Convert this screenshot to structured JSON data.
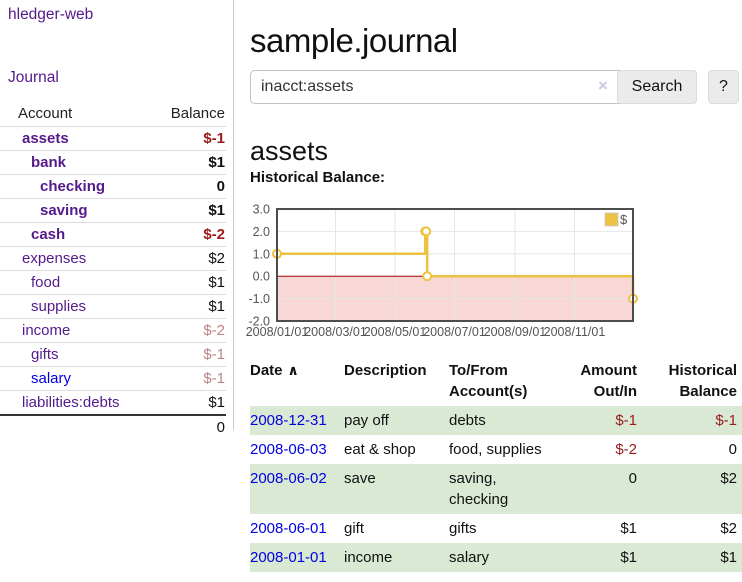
{
  "sidebar": {
    "brand": "hledger-web",
    "journal_link": "Journal",
    "accounts": {
      "header_account": "Account",
      "header_balance": "Balance",
      "rows": [
        {
          "name": "assets",
          "balance": "$-1",
          "indent": 1,
          "bold": true,
          "balance_style": "neg-strong",
          "link_style": "purple"
        },
        {
          "name": "bank",
          "balance": "$1",
          "indent": 2,
          "bold": true,
          "balance_style": "normal",
          "link_style": "purple"
        },
        {
          "name": "checking",
          "balance": "0",
          "indent": 3,
          "bold": true,
          "balance_style": "normal",
          "link_style": "purple"
        },
        {
          "name": "saving",
          "balance": "$1",
          "indent": 3,
          "bold": true,
          "balance_style": "normal",
          "link_style": "purple"
        },
        {
          "name": "cash",
          "balance": "$-2",
          "indent": 2,
          "bold": true,
          "balance_style": "neg-strong",
          "link_style": "purple"
        },
        {
          "name": "expenses",
          "balance": "$2",
          "indent": 1,
          "bold": false,
          "balance_style": "normal",
          "link_style": "purple"
        },
        {
          "name": "food",
          "balance": "$1",
          "indent": 2,
          "bold": false,
          "balance_style": "normal",
          "link_style": "purple"
        },
        {
          "name": "supplies",
          "balance": "$1",
          "indent": 2,
          "bold": false,
          "balance_style": "normal",
          "link_style": "purple"
        },
        {
          "name": "income",
          "balance": "$-2",
          "indent": 1,
          "bold": false,
          "balance_style": "neg-dim",
          "link_style": "purple"
        },
        {
          "name": "gifts",
          "balance": "$-1",
          "indent": 2,
          "bold": false,
          "balance_style": "neg-dim",
          "link_style": "purple"
        },
        {
          "name": "salary",
          "balance": "$-1",
          "indent": 2,
          "bold": false,
          "balance_style": "neg-dim",
          "link_style": "blue"
        },
        {
          "name": "liabilities:debts",
          "balance": "$1",
          "indent": 1,
          "bold": false,
          "balance_style": "normal",
          "link_style": "purple"
        }
      ],
      "total": "0"
    }
  },
  "main": {
    "title": "sample.journal",
    "search": {
      "value": "inacct:assets",
      "clear_icon": "×",
      "search_button": "Search",
      "help_button": "?"
    },
    "account_heading": "assets",
    "chart_heading": "Historical Balance:"
  },
  "chart_data": {
    "type": "line",
    "title": "Historical Balance",
    "step": true,
    "series": [
      {
        "name": "$",
        "color": "#edc240",
        "points": [
          {
            "date": "2008-01-01",
            "value": 1
          },
          {
            "date": "2008-06-01",
            "value": 2
          },
          {
            "date": "2008-06-02",
            "value": 2
          },
          {
            "date": "2008-06-03",
            "value": 0
          },
          {
            "date": "2008-12-31",
            "value": -1
          }
        ]
      }
    ],
    "x_range": [
      "2008-01-01",
      "2008-12-31"
    ],
    "ylim": [
      -2,
      3
    ],
    "y_ticks": [
      3.0,
      2.0,
      1.0,
      0.0,
      -1.0,
      -2.0
    ],
    "y_tick_labels": [
      "3.0",
      "2.0",
      "1.0",
      "0.0",
      "-1.0",
      "-2.0"
    ],
    "x_ticks": [
      "2008-01-01",
      "2008-03-01",
      "2008-05-01",
      "2008-07-01",
      "2008-09-01",
      "2008-11-01"
    ],
    "x_tick_labels": [
      "2008/01/01",
      "2008/03/01",
      "2008/05/01",
      "2008/07/01",
      "2008/09/01",
      "2008/11/01"
    ],
    "legend": {
      "label": "$",
      "position": "top-right"
    },
    "grid": true,
    "colors": {
      "line": "#edc240",
      "marker_fill": "#ffffff",
      "negative_region": "#f8d7d7",
      "zero_line": "#a40000",
      "gridline": "#e6e6e6",
      "border": "#4d4d4d",
      "tick_text": "#545454"
    }
  },
  "register": {
    "headers": {
      "date": "Date",
      "sort_icon": "∧",
      "description": "Description",
      "tofrom": "To/From Account(s)",
      "amount": "Amount Out/In",
      "balance": "Historical Balance"
    },
    "rows": [
      {
        "date": "2008-12-31",
        "description": "pay off",
        "accounts": "debts",
        "amount": "$-1",
        "amount_style": "neg",
        "balance": "$-1",
        "balance_style": "neg"
      },
      {
        "date": "2008-06-03",
        "description": "eat & shop",
        "accounts": "food, supplies",
        "amount": "$-2",
        "amount_style": "neg",
        "balance": "0",
        "balance_style": "normal"
      },
      {
        "date": "2008-06-02",
        "description": "save",
        "accounts": "saving, checking",
        "amount": "0",
        "amount_style": "normal",
        "balance": "$2",
        "balance_style": "normal"
      },
      {
        "date": "2008-06-01",
        "description": "gift",
        "accounts": "gifts",
        "amount": "$1",
        "amount_style": "normal",
        "balance": "$2",
        "balance_style": "normal"
      },
      {
        "date": "2008-01-01",
        "description": "income",
        "accounts": "salary",
        "amount": "$1",
        "amount_style": "normal",
        "balance": "$1",
        "balance_style": "normal"
      }
    ]
  },
  "colors": {
    "link_purple": "#551a8b",
    "link_blue": "#0000e0",
    "negative_strong": "#9c1b1b",
    "negative_dim": "#bb8383",
    "row_stripe_green": "#d9e9d4"
  }
}
